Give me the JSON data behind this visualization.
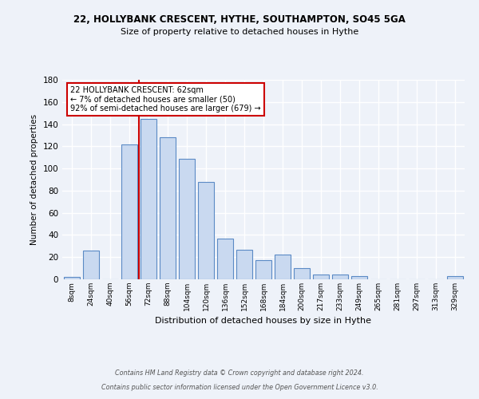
{
  "title": "22, HOLLYBANK CRESCENT, HYTHE, SOUTHAMPTON, SO45 5GA",
  "subtitle": "Size of property relative to detached houses in Hythe",
  "xlabel": "Distribution of detached houses by size in Hythe",
  "ylabel": "Number of detached properties",
  "bin_labels": [
    "8sqm",
    "24sqm",
    "40sqm",
    "56sqm",
    "72sqm",
    "88sqm",
    "104sqm",
    "120sqm",
    "136sqm",
    "152sqm",
    "168sqm",
    "184sqm",
    "200sqm",
    "217sqm",
    "233sqm",
    "249sqm",
    "265sqm",
    "281sqm",
    "297sqm",
    "313sqm",
    "329sqm"
  ],
  "bar_values": [
    2,
    26,
    0,
    122,
    145,
    128,
    109,
    88,
    37,
    27,
    17,
    22,
    10,
    4,
    4,
    3,
    0,
    0,
    0,
    0,
    3
  ],
  "bar_color": "#c9d9f0",
  "bar_edge_color": "#5b8ac5",
  "ylim": [
    0,
    180
  ],
  "yticks": [
    0,
    20,
    40,
    60,
    80,
    100,
    120,
    140,
    160,
    180
  ],
  "vline_x": 3.5,
  "annotation_text": "22 HOLLYBANK CRESCENT: 62sqm\n← 7% of detached houses are smaller (50)\n92% of semi-detached houses are larger (679) →",
  "annotation_box_color": "#ffffff",
  "annotation_box_edge_color": "#cc0000",
  "vline_color": "#cc0000",
  "footer_line1": "Contains HM Land Registry data © Crown copyright and database right 2024.",
  "footer_line2": "Contains public sector information licensed under the Open Government Licence v3.0.",
  "background_color": "#eef2f9",
  "grid_color": "#ffffff"
}
